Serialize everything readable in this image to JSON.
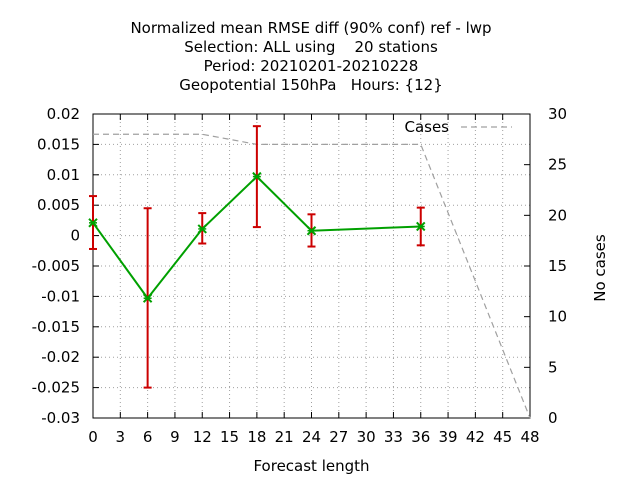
{
  "chart_data": {
    "type": "line",
    "title_lines": [
      "Normalized mean RMSE diff (90% conf) ref - lwp",
      "Selection: ALL using    20 stations",
      "Period: 20210201-20210228",
      "Geopotential 150hPa   Hours: {12}"
    ],
    "xlabel": "Forecast length",
    "ylabel": "",
    "y2label": "No cases",
    "xlim": [
      0,
      48
    ],
    "ylim": [
      -0.03,
      0.02
    ],
    "y2lim": [
      0,
      30
    ],
    "x_ticks": [
      "0",
      "3",
      "6",
      "9",
      "12",
      "15",
      "18",
      "21",
      "24",
      "27",
      "30",
      "33",
      "36",
      "39",
      "42",
      "45",
      "48"
    ],
    "y_ticks": [
      "0.02",
      "0.015",
      "0.01",
      "0.005",
      "0",
      "-0.005",
      "-0.01",
      "-0.015",
      "-0.02",
      "-0.025",
      "-0.03"
    ],
    "y2_ticks": [
      "30",
      "25",
      "20",
      "15",
      "10",
      "5",
      "0"
    ],
    "grid": true,
    "series": [
      {
        "color": "#00a000",
        "errorbar_color": "#cc0000",
        "x": [
          0,
          6,
          12,
          18,
          24,
          36
        ],
        "y": [
          0.0021,
          -0.0103,
          0.0011,
          0.0097,
          0.0008,
          0.0015
        ],
        "err_low": [
          -0.0022,
          -0.025,
          -0.0013,
          0.0014,
          -0.0018,
          -0.0016
        ],
        "err_high": [
          0.0065,
          0.0045,
          0.0037,
          0.018,
          0.0035,
          0.0046
        ]
      },
      {
        "name": "Cases",
        "axis": "y2",
        "style": "dashed",
        "color": "#a0a0a0",
        "x": [
          0,
          12,
          18,
          24,
          36,
          48
        ],
        "y": [
          28,
          28,
          27,
          27,
          27,
          0
        ]
      }
    ],
    "legend_position": "top-right"
  }
}
